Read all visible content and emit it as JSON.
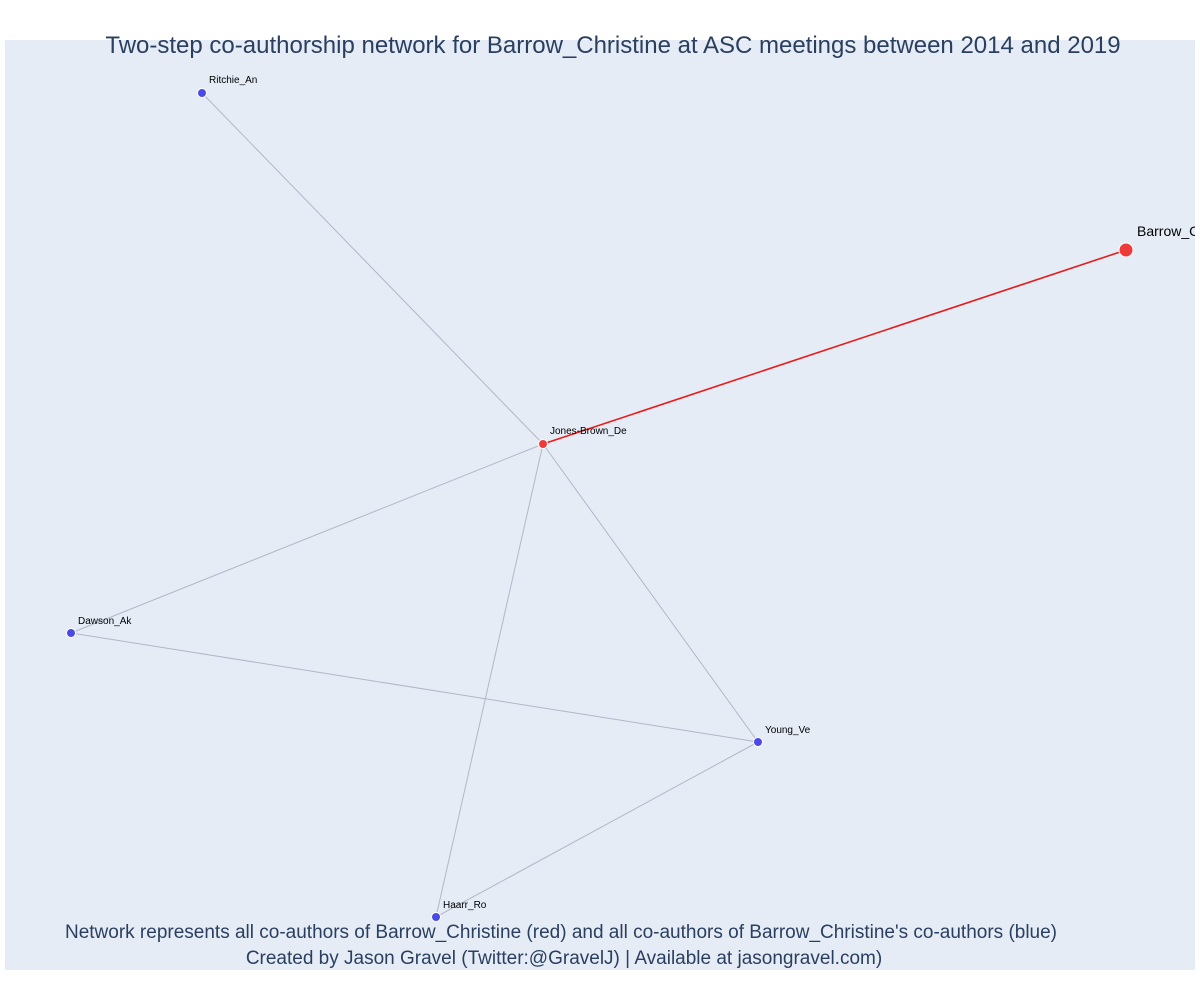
{
  "title": "Two-step co-authorship network for Barrow_Christine at ASC meetings between 2014 and 2019",
  "footer": {
    "line1": "Network represents all co-authors of Barrow_Christine (red) and all co-authors of Barrow_Christine's co-authors (blue)",
    "line2": "Created by Jason Gravel (Twitter:@GravelJ) | Available at jasongravel.com)"
  },
  "colors": {
    "background": "#e5ecf6",
    "text": "#2a3f5f",
    "red": "#ef3a3a",
    "blue": "#4a4ae8",
    "edge": "#b3b6c8",
    "focal_edge": "#e81c1c"
  },
  "nodes": [
    {
      "id": "barrow",
      "label": "Barrow_Christine",
      "color": "red",
      "role": "focal"
    },
    {
      "id": "jones",
      "label": "Jones-Brown_De",
      "color": "red",
      "role": "coauthor"
    },
    {
      "id": "ritchie",
      "label": "Ritchie_An",
      "color": "blue",
      "role": "second"
    },
    {
      "id": "dawson",
      "label": "Dawson_Ak",
      "color": "blue",
      "role": "second"
    },
    {
      "id": "young",
      "label": "Young_Ve",
      "color": "blue",
      "role": "second"
    },
    {
      "id": "haarr",
      "label": "Haarr_Ro",
      "color": "blue",
      "role": "second"
    }
  ],
  "edges": [
    {
      "from": "barrow",
      "to": "jones",
      "type": "focal"
    },
    {
      "from": "jones",
      "to": "ritchie",
      "type": "normal"
    },
    {
      "from": "jones",
      "to": "dawson",
      "type": "normal"
    },
    {
      "from": "jones",
      "to": "young",
      "type": "normal"
    },
    {
      "from": "jones",
      "to": "haarr",
      "type": "normal"
    },
    {
      "from": "dawson",
      "to": "young",
      "type": "normal"
    },
    {
      "from": "young",
      "to": "haarr",
      "type": "normal"
    }
  ]
}
